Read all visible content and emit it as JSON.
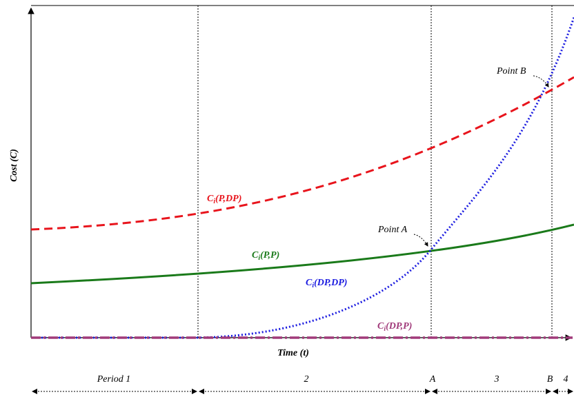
{
  "axes": {
    "y_title": "Cost (C)",
    "x_title": "Time (t)"
  },
  "curves": [
    {
      "base": "C",
      "sub": "i",
      "args": "(P,DP)"
    },
    {
      "base": "C",
      "sub": "i",
      "args": "(P,P)"
    },
    {
      "base": "C",
      "sub": "i",
      "args": "(DP,DP)"
    },
    {
      "base": "C",
      "sub": "i",
      "args": "(DP,P)"
    }
  ],
  "points": [
    "Point A",
    "Point B"
  ],
  "periods": [
    "Period 1",
    "2",
    "3",
    "4"
  ],
  "markers": [
    "A",
    "B"
  ]
}
